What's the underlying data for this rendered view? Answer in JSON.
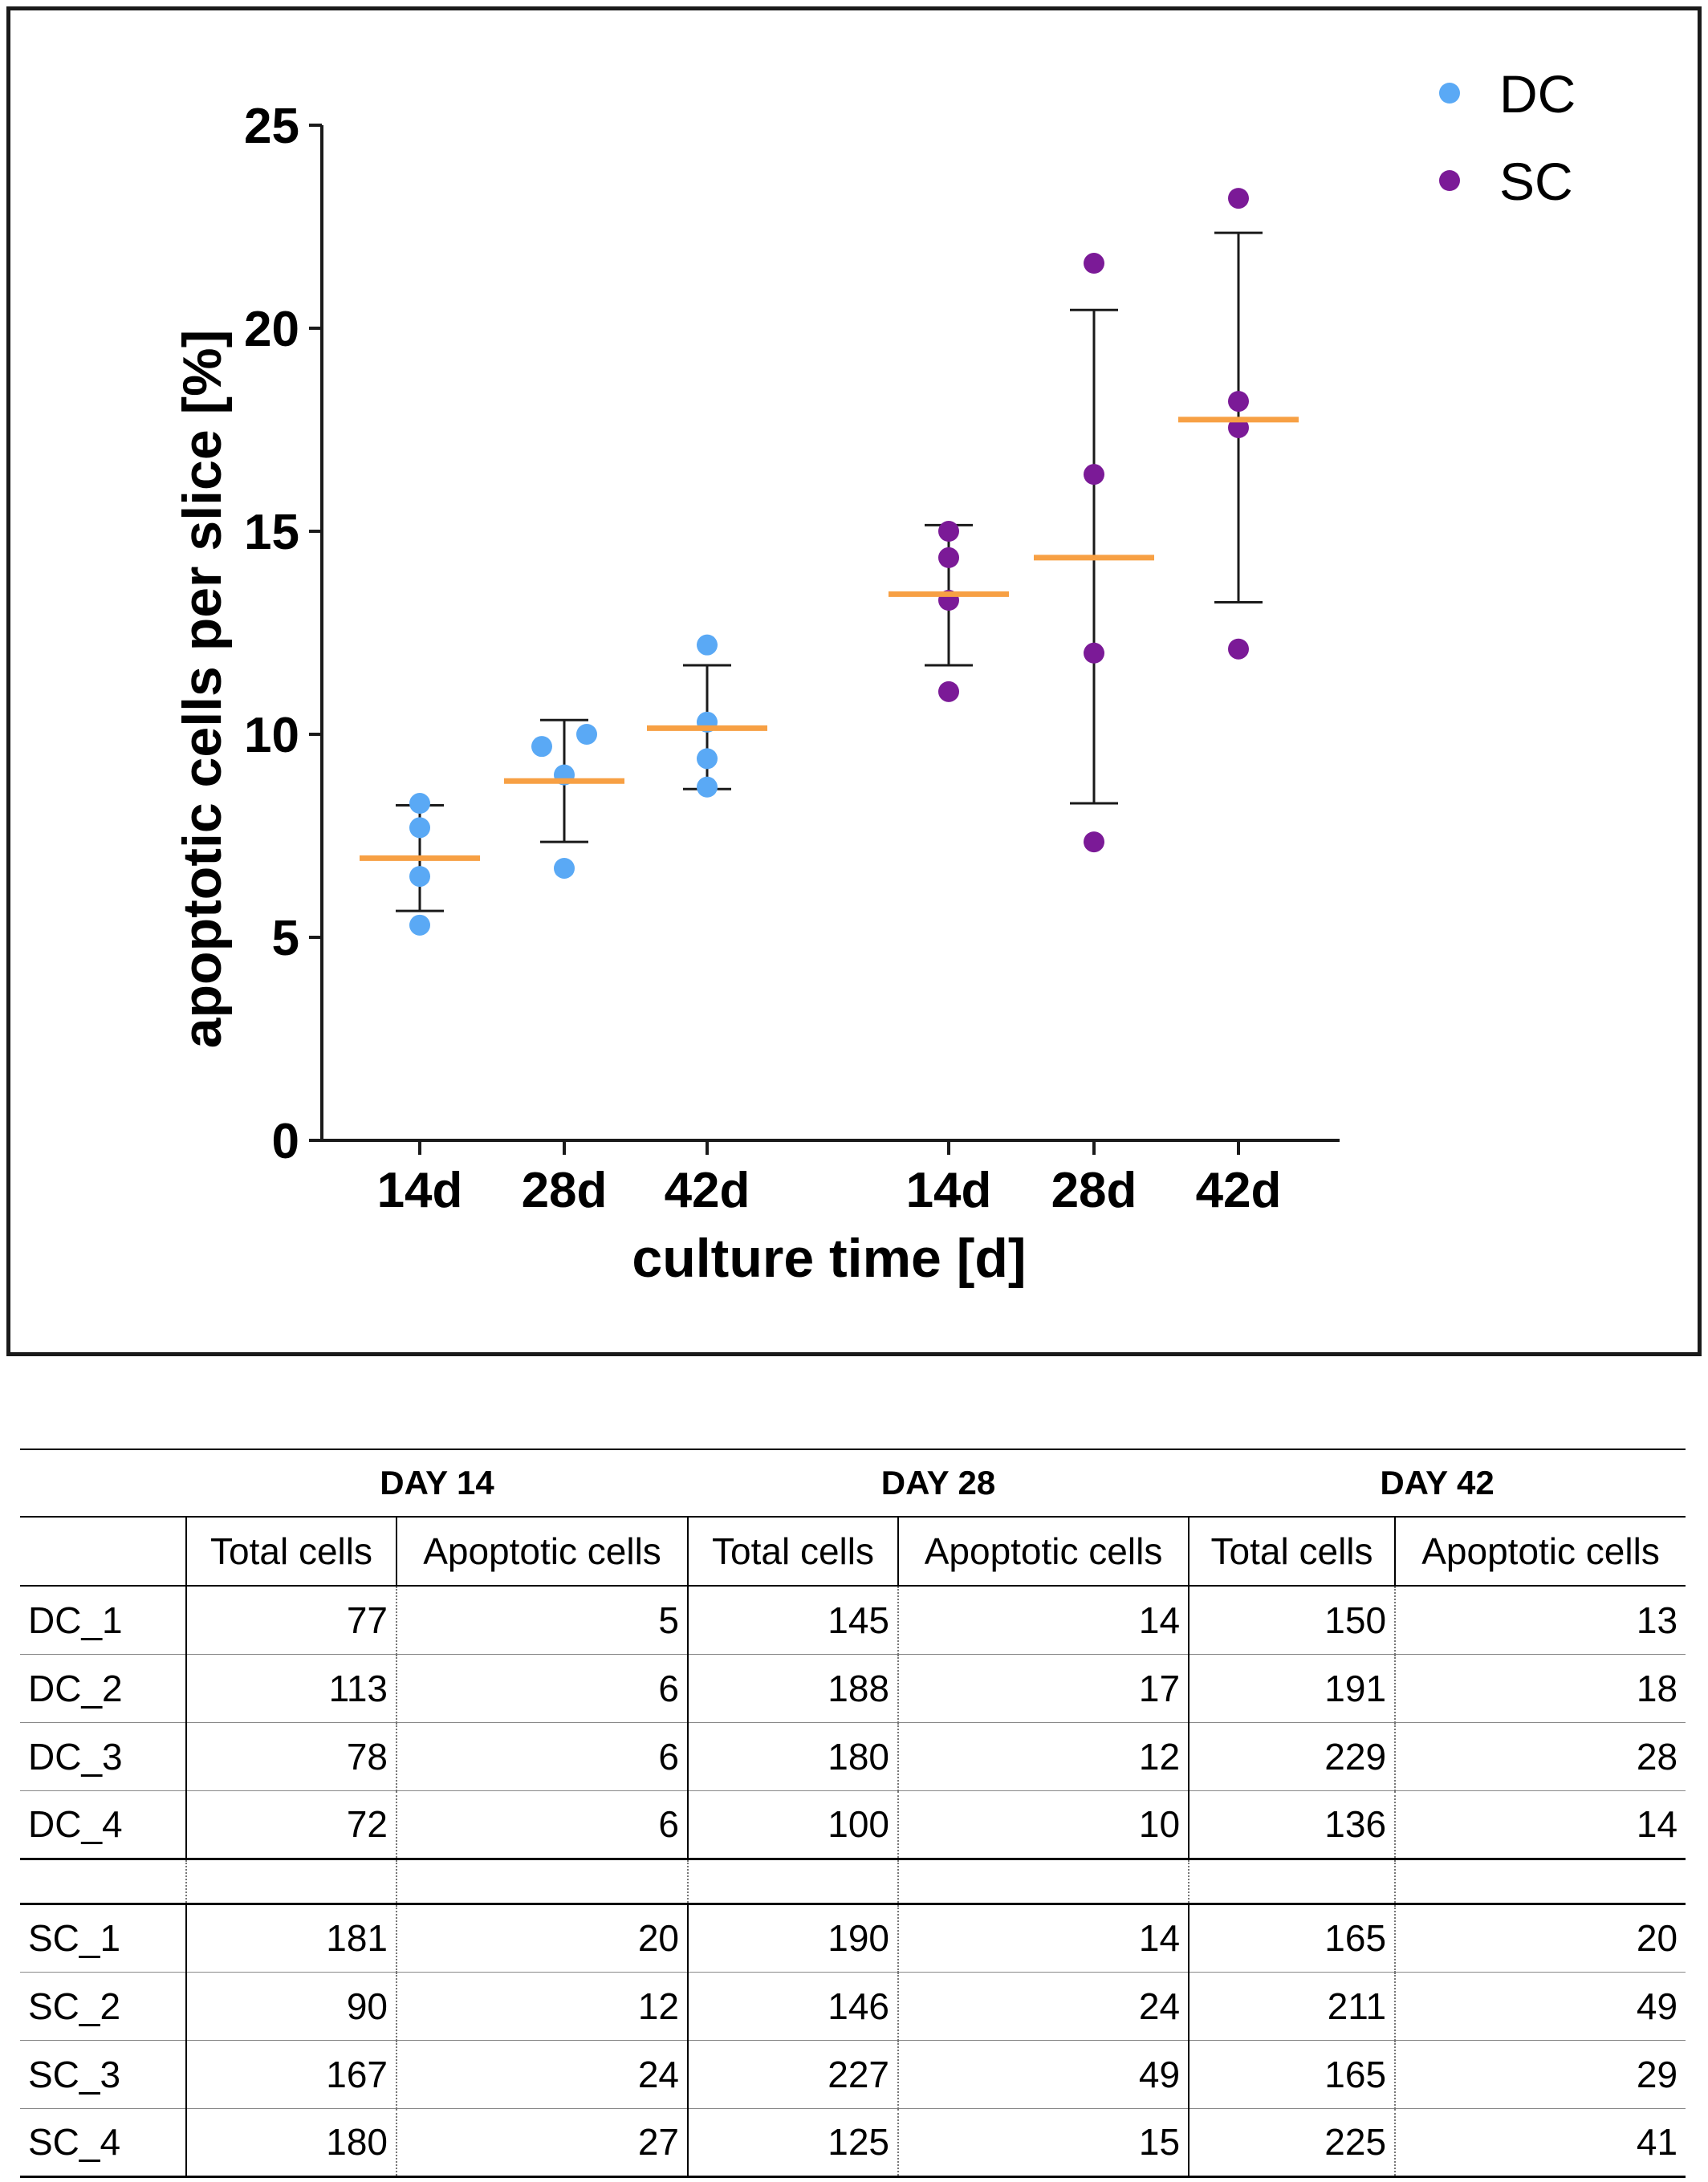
{
  "chart_data": {
    "type": "scatter",
    "xlabel": "culture time [d]",
    "ylabel": "apoptotic cells per slice [%]",
    "ylim": [
      0,
      25
    ],
    "yticks": [
      0,
      5,
      10,
      15,
      20,
      25
    ],
    "categories": [
      "14d",
      "28d",
      "42d",
      "14d",
      "28d",
      "42d"
    ],
    "legend_position": "top-right",
    "colors": {
      "DC": "#5aa9f5",
      "SC": "#7b1a97",
      "mean": "#f7a044",
      "error": "#1a1a1a"
    },
    "series": [
      {
        "name": "DC",
        "groups": [
          {
            "category": "14d",
            "points": [
              8.3,
              7.7,
              6.5,
              5.3
            ],
            "mean": 6.95,
            "sd_low": 5.65,
            "sd_high": 8.25
          },
          {
            "category": "28d",
            "points": [
              9.7,
              10.0,
              9.0,
              6.7
            ],
            "mean": 8.85,
            "sd_low": 7.35,
            "sd_high": 10.35
          },
          {
            "category": "42d",
            "points": [
              12.2,
              10.3,
              9.4,
              8.7
            ],
            "mean": 10.15,
            "sd_low": 8.65,
            "sd_high": 11.7
          }
        ]
      },
      {
        "name": "SC",
        "groups": [
          {
            "category": "14d",
            "points": [
              15.0,
              14.35,
              13.3,
              11.05
            ],
            "mean": 13.45,
            "sd_low": 11.7,
            "sd_high": 15.15
          },
          {
            "category": "28d",
            "points": [
              21.6,
              16.4,
              12.0,
              7.35
            ],
            "mean": 14.35,
            "sd_low": 8.3,
            "sd_high": 20.45
          },
          {
            "category": "42d",
            "points": [
              23.2,
              18.2,
              17.55,
              12.1
            ],
            "mean": 17.75,
            "sd_low": 13.25,
            "sd_high": 22.35
          }
        ]
      }
    ]
  },
  "table": {
    "groups": [
      "DAY 14",
      "DAY 28",
      "DAY 42"
    ],
    "subheaders": [
      "Total cells",
      "Apoptotic cells",
      "Total cells",
      "Apoptotic cells",
      "Total cells",
      "Apoptotic cells"
    ],
    "dc_rows": [
      {
        "label": "DC_1",
        "values": [
          "77",
          "5",
          "145",
          "14",
          "150",
          "13"
        ]
      },
      {
        "label": "DC_2",
        "values": [
          "113",
          "6",
          "188",
          "17",
          "191",
          "18"
        ]
      },
      {
        "label": "DC_3",
        "values": [
          "78",
          "6",
          "180",
          "12",
          "229",
          "28"
        ]
      },
      {
        "label": "DC_4",
        "values": [
          "72",
          "6",
          "100",
          "10",
          "136",
          "14"
        ]
      }
    ],
    "sc_rows": [
      {
        "label": "SC_1",
        "values": [
          "181",
          "20",
          "190",
          "14",
          "165",
          "20"
        ]
      },
      {
        "label": "SC_2",
        "values": [
          "90",
          "12",
          "146",
          "24",
          "211",
          "49"
        ]
      },
      {
        "label": "SC_3",
        "values": [
          "167",
          "24",
          "227",
          "49",
          "165",
          "29"
        ]
      },
      {
        "label": "SC_4",
        "values": [
          "180",
          "27",
          "125",
          "15",
          "225",
          "41"
        ]
      }
    ]
  }
}
